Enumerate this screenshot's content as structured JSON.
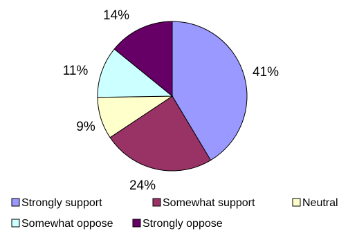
{
  "chart_data": {
    "type": "pie",
    "title": "",
    "categories": [
      "Strongly support",
      "Somewhat support",
      "Neutral",
      "Somewhat oppose",
      "Strongly oppose"
    ],
    "values": [
      41,
      24,
      9,
      11,
      14
    ],
    "labels": [
      "41%",
      "24%",
      "9%",
      "11%",
      "14%"
    ],
    "colors": [
      "#9999FF",
      "#993366",
      "#FFFFCC",
      "#CCFFFF",
      "#660066"
    ],
    "start_angle_deg": 0,
    "direction": "clockwise",
    "legend_position": "bottom"
  }
}
